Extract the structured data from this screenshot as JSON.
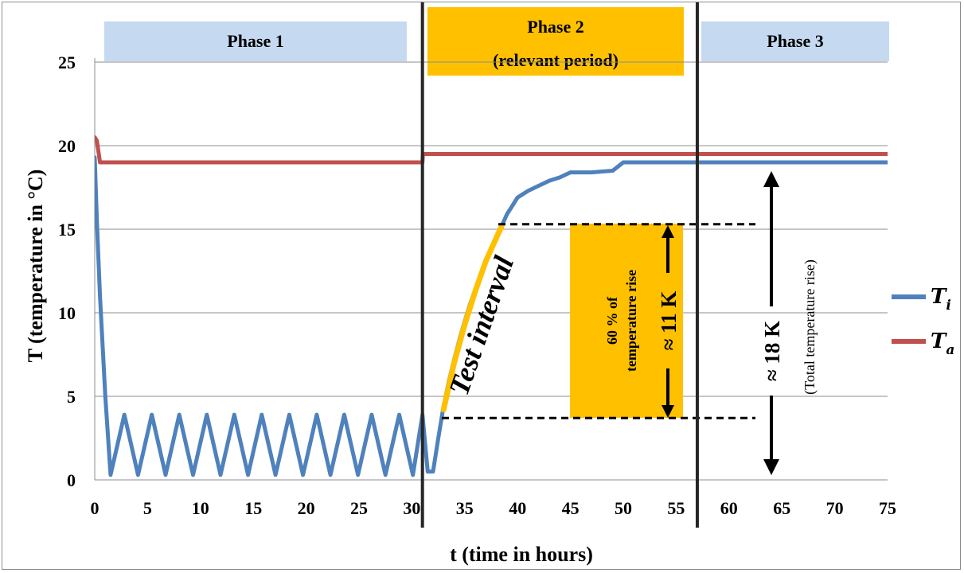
{
  "chart_data": {
    "type": "line",
    "title": "",
    "xlabel": "t (time in hours)",
    "ylabel": "T (temperature in °C)",
    "xlim": [
      0,
      75
    ],
    "ylim": [
      0,
      25
    ],
    "x_ticks": [
      0,
      5,
      10,
      15,
      20,
      25,
      30,
      35,
      40,
      45,
      50,
      55,
      60,
      65,
      70,
      75
    ],
    "y_ticks": [
      0,
      5,
      10,
      15,
      20,
      25
    ],
    "grid": "horizontal",
    "legend_position": "right",
    "series": [
      {
        "name": "T_i",
        "legend_main": "T",
        "legend_sub": "i",
        "color": "#4f81bd",
        "x": [
          0,
          0.2,
          0.5,
          1.0,
          1.5,
          2.8,
          4.1,
          5.4,
          6.7,
          8.0,
          9.3,
          10.6,
          11.9,
          13.2,
          14.5,
          15.8,
          17.1,
          18.4,
          19.7,
          21.0,
          22.3,
          23.6,
          24.9,
          26.2,
          27.5,
          28.8,
          30.1,
          31.0,
          31.5,
          32.0,
          32.5,
          33.0,
          33.5,
          34.0,
          34.5,
          35.0,
          35.5,
          36.0,
          36.5,
          37.0,
          37.5,
          38.0,
          38.5,
          39.0,
          39.5,
          40.0,
          41.0,
          42.0,
          43.0,
          44.0,
          45.0,
          47.0,
          49.0,
          50.0,
          55.0,
          60.0,
          65.0,
          70.0,
          75.0
        ],
        "y": [
          19.3,
          15.5,
          11.0,
          5.0,
          0.3,
          3.9,
          0.3,
          3.9,
          0.3,
          3.9,
          0.3,
          3.9,
          0.3,
          3.9,
          0.3,
          3.9,
          0.3,
          3.9,
          0.3,
          3.9,
          0.3,
          3.9,
          0.3,
          3.9,
          0.3,
          3.9,
          0.3,
          3.9,
          0.5,
          0.5,
          2.5,
          4.4,
          5.9,
          7.2,
          8.4,
          9.5,
          10.5,
          11.4,
          12.3,
          13.1,
          13.8,
          14.6,
          15.2,
          15.9,
          16.4,
          16.9,
          17.3,
          17.6,
          17.9,
          18.1,
          18.4,
          18.4,
          18.5,
          19.0,
          19.0,
          19.0,
          19.0,
          19.0,
          19.0
        ]
      },
      {
        "name": "T_a",
        "legend_main": "T",
        "legend_sub": "a",
        "color": "#c0504d",
        "x": [
          0,
          0.2,
          0.5,
          31.0,
          31.05,
          75.0
        ],
        "y": [
          20.5,
          20.3,
          19.0,
          19.0,
          19.5,
          19.5
        ]
      }
    ],
    "test_interval_curve": {
      "color": "#ffc000",
      "x": [
        33.0,
        34.0,
        35.0,
        36.0,
        37.0,
        38.5
      ],
      "y": [
        4.2,
        7.0,
        9.3,
        11.3,
        13.1,
        15.2
      ]
    },
    "phase_boundaries": [
      31.0,
      57.0
    ],
    "reference_levels": [
      15.3,
      3.7
    ],
    "phases": [
      {
        "label": "Phase 1",
        "color": "#c5d9f1"
      },
      {
        "label": "Phase 2",
        "label2": "(relevant period)",
        "color": "#ffc000"
      },
      {
        "label": "Phase 3",
        "color": "#c5d9f1"
      }
    ],
    "annotations": {
      "test_interval": "Test interval",
      "sixty_percent_line1": "60 % of",
      "sixty_percent_line2": "temperature  rise",
      "eleven_k": "≈ 11 K",
      "eighteen_k": "≈ 18 K",
      "total_rise": "(Total temperature  rise)"
    }
  }
}
